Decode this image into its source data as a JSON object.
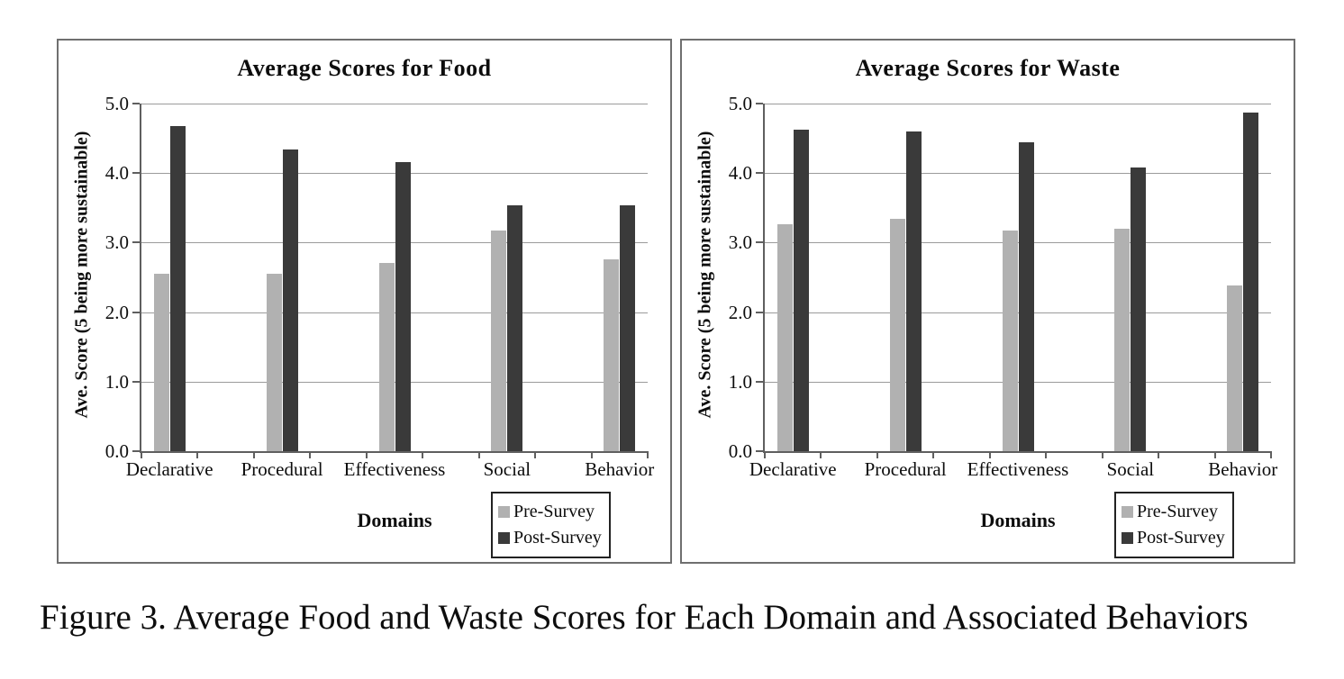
{
  "figure_caption": "Figure 3. Average Food and Waste Scores for Each Domain and Associated Behaviors",
  "colors": {
    "pre_survey": "#b1b1b1",
    "post_survey": "#3a3a3a",
    "gridline": "#9b9b9b",
    "axis": "#5f5f5f",
    "panel_border": "#6f6f6f",
    "legend_border": "#222222",
    "text": "#0d0d0d",
    "background": "#ffffff"
  },
  "legend": {
    "items": [
      {
        "label": "Pre-Survey",
        "color_key": "pre_survey"
      },
      {
        "label": "Post-Survey",
        "color_key": "post_survey"
      }
    ]
  },
  "chart_data": [
    {
      "type": "bar",
      "title": "Average Scores for Food",
      "xlabel": "Domains",
      "ylabel": "Ave. Score (5 being more sustainable)",
      "categories": [
        "Declarative",
        "Procedural",
        "Effectiveness",
        "Social",
        "Behavior"
      ],
      "series": [
        {
          "name": "Pre-Survey",
          "values": [
            2.55,
            2.55,
            2.71,
            3.18,
            2.76
          ]
        },
        {
          "name": "Post-Survey",
          "values": [
            4.67,
            4.34,
            4.16,
            3.53,
            3.53
          ]
        }
      ],
      "ylim": [
        0.0,
        5.0
      ],
      "ytick_step": 1.0,
      "yticks": [
        "0.0",
        "1.0",
        "2.0",
        "3.0",
        "4.0",
        "5.0"
      ],
      "grid": true,
      "legend_position": "bottom-right"
    },
    {
      "type": "bar",
      "title": "Average Scores for Waste",
      "xlabel": "Domains",
      "ylabel": "Ave. Score (5 being more sustainable)",
      "categories": [
        "Declarative",
        "Procedural",
        "Effectiveness",
        "Social",
        "Behavior"
      ],
      "series": [
        {
          "name": "Pre-Survey",
          "values": [
            3.26,
            3.34,
            3.17,
            3.2,
            2.39
          ]
        },
        {
          "name": "Post-Survey",
          "values": [
            4.62,
            4.6,
            4.44,
            4.08,
            4.87
          ]
        }
      ],
      "ylim": [
        0.0,
        5.0
      ],
      "ytick_step": 1.0,
      "yticks": [
        "0.0",
        "1.0",
        "2.0",
        "3.0",
        "4.0",
        "5.0"
      ],
      "grid": true,
      "legend_position": "bottom-right"
    }
  ]
}
